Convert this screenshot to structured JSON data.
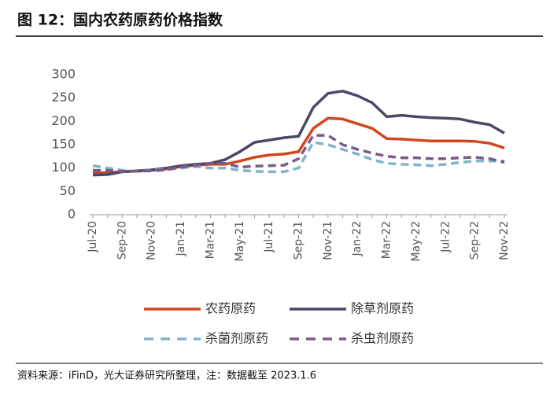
{
  "chart_data": {
    "type": "line",
    "title": "图 12：国内农药原药价格指数",
    "source": "资料来源：iFinD，光大证券研究所整理，注：数据截至 2023.1.6",
    "categories": [
      "Jul-20",
      null,
      "Sep-20",
      null,
      "Nov-20",
      null,
      "Jan-21",
      null,
      "Mar-21",
      null,
      "May-21",
      null,
      "Jul-21",
      null,
      "Sep-21",
      null,
      "Nov-21",
      null,
      "Jan-22",
      null,
      "Mar-22",
      null,
      "May-22",
      null,
      "Jul-22",
      null,
      "Sep-22",
      null,
      "Nov-22"
    ],
    "ylim": [
      0,
      300
    ],
    "yticks": [
      0,
      50,
      100,
      150,
      200,
      250,
      300
    ],
    "series": [
      {
        "name": "农药原药",
        "color": "#d2461e",
        "dash": false,
        "values": [
          90,
          90,
          92,
          93,
          95,
          98,
          103,
          106,
          108,
          108,
          115,
          123,
          128,
          130,
          135,
          185,
          207,
          205,
          195,
          185,
          163,
          162,
          160,
          158,
          158,
          158,
          157,
          153,
          143
        ]
      },
      {
        "name": "除草剂原药",
        "color": "#4a4868",
        "dash": false,
        "values": [
          85,
          86,
          92,
          94,
          96,
          100,
          105,
          108,
          110,
          118,
          135,
          155,
          160,
          165,
          168,
          230,
          260,
          265,
          255,
          240,
          210,
          213,
          210,
          208,
          207,
          205,
          198,
          193,
          175
        ]
      },
      {
        "name": "杀菌剂原药",
        "color": "#82b4c8",
        "dash": true,
        "values": [
          105,
          100,
          95,
          93,
          95,
          97,
          100,
          103,
          100,
          100,
          95,
          93,
          92,
          92,
          100,
          155,
          150,
          140,
          130,
          118,
          110,
          108,
          107,
          105,
          108,
          112,
          115,
          115,
          115
        ]
      },
      {
        "name": "杀虫剂原药",
        "color": "#7a5a8a",
        "dash": true,
        "values": [
          95,
          95,
          93,
          93,
          94,
          96,
          102,
          106,
          110,
          110,
          102,
          104,
          105,
          106,
          120,
          170,
          170,
          150,
          140,
          132,
          125,
          122,
          122,
          120,
          120,
          122,
          123,
          120,
          112
        ]
      }
    ]
  }
}
